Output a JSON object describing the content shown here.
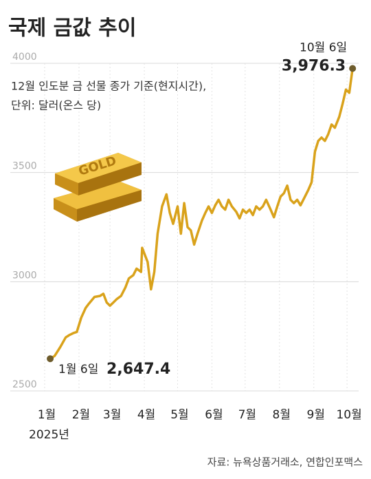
{
  "chart_data": {
    "type": "line",
    "title": "국제 금값 추이",
    "subtitle": [
      "12월 인도분 금 선물 종가 기준(현지시간),",
      "단위: 달러(온스 당)"
    ],
    "x_label": "2025년",
    "source": "자료: 뉴욕상품거래소, 연합인포맥스",
    "illustration_text": "GOLD",
    "annotations": [
      "1월 6일",
      "10월 6일"
    ],
    "xlim": [
      1,
      280
    ],
    "xticks": [
      {
        "value": 1,
        "label": "1월"
      },
      {
        "value": 32,
        "label": "2월"
      },
      {
        "value": 60,
        "label": "3월"
      },
      {
        "value": 91,
        "label": "4월"
      },
      {
        "value": 121,
        "label": "5월"
      },
      {
        "value": 152,
        "label": "6월"
      },
      {
        "value": 182,
        "label": "7월"
      },
      {
        "value": 213,
        "label": "8월"
      },
      {
        "value": 244,
        "label": "9월"
      },
      {
        "value": 274,
        "label": "10월"
      }
    ],
    "ylim": [
      2500,
      4000
    ],
    "yticks": [
      2500,
      3000,
      3500,
      4000
    ],
    "grid": true,
    "color": "#d9a21b",
    "marker_color": "#6e5c2c",
    "x": [
      6,
      10,
      15,
      20,
      23,
      27,
      30,
      34,
      38,
      41,
      46,
      51,
      54,
      57,
      60,
      63,
      66,
      70,
      74,
      77,
      81,
      84,
      88,
      89,
      94,
      97,
      100,
      103,
      107,
      111,
      114,
      117,
      121,
      124,
      127,
      130,
      133,
      136,
      139,
      143,
      146,
      149,
      152,
      155,
      158,
      161,
      164,
      167,
      170,
      174,
      177,
      180,
      183,
      186,
      189,
      192,
      195,
      198,
      201,
      205,
      208,
      211,
      214,
      217,
      220,
      223,
      226,
      229,
      232,
      236,
      239,
      242,
      245,
      248,
      251,
      254,
      257,
      260,
      263,
      267,
      270,
      273,
      276,
      279
    ],
    "values": [
      2647.4,
      2660,
      2700,
      2745,
      2755,
      2765,
      2770,
      2835,
      2880,
      2900,
      2930,
      2935,
      2945,
      2905,
      2890,
      2905,
      2920,
      2935,
      2975,
      3015,
      3030,
      3060,
      3045,
      3155,
      3090,
      2965,
      3045,
      3220,
      3345,
      3400,
      3315,
      3265,
      3345,
      3220,
      3360,
      3250,
      3235,
      3170,
      3220,
      3280,
      3315,
      3345,
      3315,
      3350,
      3375,
      3345,
      3330,
      3375,
      3345,
      3320,
      3290,
      3330,
      3315,
      3330,
      3305,
      3345,
      3330,
      3345,
      3375,
      3330,
      3295,
      3345,
      3390,
      3405,
      3440,
      3375,
      3360,
      3375,
      3350,
      3390,
      3420,
      3455,
      3595,
      3645,
      3660,
      3645,
      3675,
      3720,
      3705,
      3755,
      3815,
      3880,
      3865,
      3976.3
    ],
    "value_labels": [
      "2,647.4",
      null,
      null,
      null,
      null,
      null,
      null,
      null,
      null,
      null,
      null,
      null,
      null,
      null,
      null,
      null,
      null,
      null,
      null,
      null,
      null,
      null,
      null,
      null,
      null,
      null,
      null,
      null,
      null,
      null,
      null,
      null,
      null,
      null,
      null,
      null,
      null,
      null,
      null,
      null,
      null,
      null,
      null,
      null,
      null,
      null,
      null,
      null,
      null,
      null,
      null,
      null,
      null,
      null,
      null,
      null,
      null,
      null,
      null,
      null,
      null,
      null,
      null,
      null,
      null,
      null,
      null,
      null,
      null,
      null,
      null,
      null,
      null,
      null,
      null,
      null,
      null,
      null,
      null,
      null,
      null,
      null,
      null,
      "3,976.3"
    ]
  }
}
